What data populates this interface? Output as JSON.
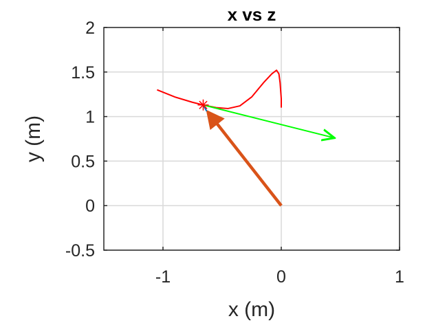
{
  "chart_data": {
    "type": "line",
    "title": "x vs z",
    "xlabel": "x (m)",
    "ylabel": "y (m)",
    "xlim": [
      -1.5,
      1
    ],
    "ylim": [
      -0.5,
      2
    ],
    "xticks": [
      -1,
      0,
      1
    ],
    "xtick_labels": [
      "-1",
      "0",
      "1"
    ],
    "yticks": [
      -0.5,
      0,
      0.5,
      1,
      1.5,
      2
    ],
    "ytick_labels": [
      "-0.5",
      "0",
      "0.5",
      "1",
      "1.5",
      "2"
    ],
    "grid": true,
    "series": [
      {
        "kind": "line",
        "color": "#ff0000",
        "x": [
          -1.05,
          -0.9,
          -0.75,
          -0.66,
          -0.55,
          -0.45,
          -0.35,
          -0.25,
          -0.15,
          -0.08,
          -0.04,
          -0.02,
          -0.01,
          0.0,
          0.0
        ],
        "y": [
          1.3,
          1.22,
          1.16,
          1.13,
          1.1,
          1.09,
          1.12,
          1.22,
          1.38,
          1.48,
          1.52,
          1.48,
          1.38,
          1.2,
          1.1
        ]
      },
      {
        "kind": "arrow",
        "color": "#d95319",
        "from": [
          0.0,
          0.0
        ],
        "to": [
          -0.62,
          1.05
        ]
      },
      {
        "kind": "arrow",
        "color": "#00ff00",
        "from": [
          -0.66,
          1.13
        ],
        "to": [
          0.45,
          0.76
        ]
      },
      {
        "kind": "line",
        "color": "#0072bd",
        "x": [
          -0.66,
          -0.63
        ],
        "y": [
          1.13,
          1.06
        ]
      },
      {
        "kind": "marker",
        "marker": "asterisk",
        "color": "#ff0000",
        "x": [
          -0.66
        ],
        "y": [
          1.13
        ]
      }
    ]
  }
}
